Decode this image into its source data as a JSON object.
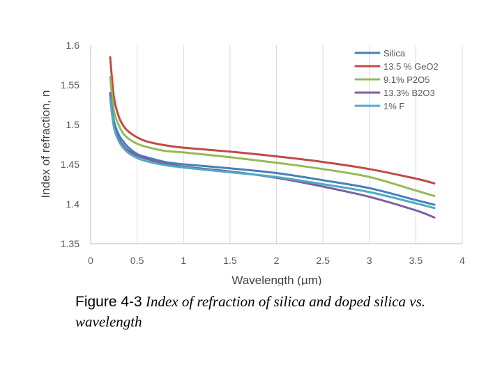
{
  "chart_data": {
    "type": "line",
    "xlabel": "Wavelength (µm)",
    "ylabel": "Index of refraction, n",
    "xlim": [
      0,
      4
    ],
    "ylim": [
      1.35,
      1.6
    ],
    "xticks": [
      "0",
      "0.5",
      "1",
      "1.5",
      "2",
      "2.5",
      "3",
      "3.5",
      "4"
    ],
    "yticks": [
      "1.35",
      "1.4",
      "1.45",
      "1.5",
      "1.55",
      "1.6"
    ],
    "grid": "vertical",
    "legend_position": "top-right",
    "x": [
      0.21,
      0.25,
      0.3,
      0.35,
      0.4,
      0.5,
      0.6,
      0.8,
      1.0,
      1.5,
      2.0,
      2.5,
      3.0,
      3.5,
      3.7
    ],
    "series": [
      {
        "name": "Silica",
        "color": "#4a7ebb",
        "values": [
          1.539,
          1.505,
          1.488,
          1.479,
          1.472,
          1.463,
          1.459,
          1.453,
          1.45,
          1.445,
          1.439,
          1.43,
          1.42,
          1.405,
          1.399
        ]
      },
      {
        "name": "13.5 % GeO2",
        "color": "#be4b48",
        "values": [
          1.585,
          1.535,
          1.511,
          1.499,
          1.492,
          1.484,
          1.479,
          1.474,
          1.471,
          1.466,
          1.46,
          1.453,
          1.444,
          1.432,
          1.426
        ]
      },
      {
        "name": "9.1% P2O5",
        "color": "#98b954",
        "values": [
          1.56,
          1.518,
          1.5,
          1.489,
          1.483,
          1.476,
          1.472,
          1.467,
          1.465,
          1.459,
          1.452,
          1.444,
          1.434,
          1.417,
          1.41
        ]
      },
      {
        "name": "13.3% B2O3",
        "color": "#7d60a0",
        "values": [
          1.54,
          1.5,
          1.483,
          1.474,
          1.468,
          1.461,
          1.457,
          1.451,
          1.447,
          1.441,
          1.433,
          1.422,
          1.409,
          1.392,
          1.383
        ]
      },
      {
        "name": "1% F",
        "color": "#4bacc6",
        "values": [
          1.533,
          1.497,
          1.48,
          1.471,
          1.465,
          1.458,
          1.454,
          1.449,
          1.446,
          1.44,
          1.434,
          1.425,
          1.415,
          1.401,
          1.395
        ]
      }
    ]
  },
  "caption": {
    "label": "Figure 4-3",
    "text": "Index of refraction of silica and doped silica vs. wavelength"
  }
}
